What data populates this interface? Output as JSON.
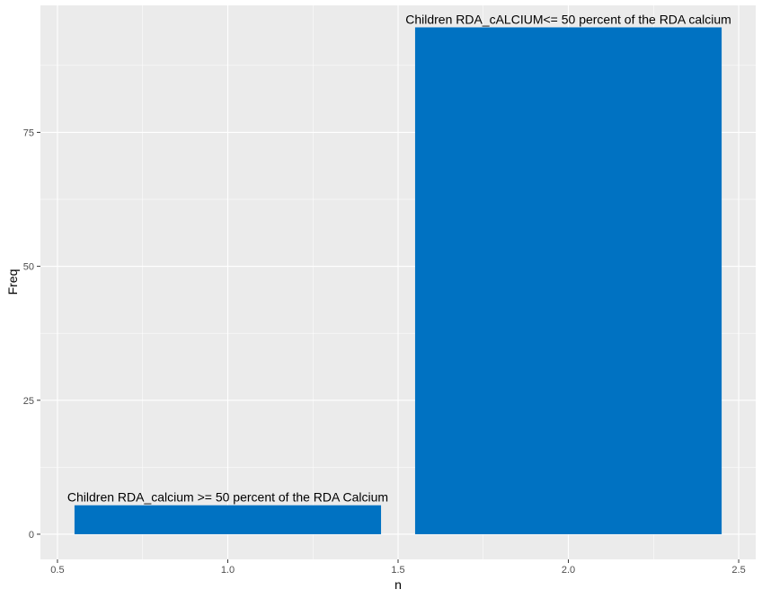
{
  "chart_data": {
    "type": "bar",
    "title": "",
    "xlabel": "n",
    "ylabel": "Freq",
    "xlim": [
      0.45,
      2.55
    ],
    "ylim": [
      -4.7,
      98.7
    ],
    "grid": true,
    "bar_width": 0.9,
    "x_ticks": [
      0.5,
      1.0,
      1.5,
      2.0,
      2.5
    ],
    "x_tick_labels": [
      "0.5",
      "1.0",
      "1.5",
      "2.0",
      "2.5"
    ],
    "y_ticks": [
      0,
      25,
      50,
      75
    ],
    "y_tick_labels": [
      "0",
      "25",
      "50",
      "75"
    ],
    "bars": [
      {
        "x": 1,
        "value": 5.4,
        "label": "Children RDA_calcium >= 50 percent of the RDA Calcium"
      },
      {
        "x": 2,
        "value": 94.6,
        "label": "Children RDA_cALCIUM<= 50 percent of the RDA calcium"
      }
    ],
    "colors": {
      "bar": "#0072C2",
      "panel": "#EBEBEB",
      "grid_major": "#FFFFFF"
    }
  }
}
